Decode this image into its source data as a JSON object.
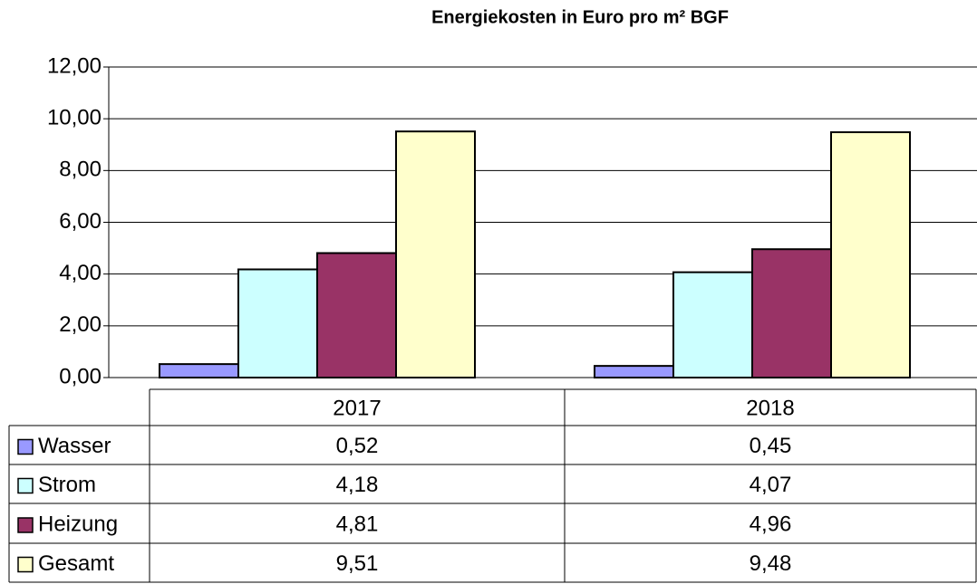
{
  "chart_data": {
    "type": "bar",
    "title": "Energiekosten in Euro pro m² BGF",
    "categories": [
      "2017",
      "2018"
    ],
    "series": [
      {
        "name": "Wasser",
        "color": "#9999ff",
        "values": [
          0.52,
          0.45
        ],
        "value_labels": [
          "0,52",
          "0,45"
        ]
      },
      {
        "name": "Strom",
        "color": "#ccffff",
        "values": [
          4.18,
          4.07
        ],
        "value_labels": [
          "4,18",
          "4,07"
        ]
      },
      {
        "name": "Heizung",
        "color": "#993366",
        "values": [
          4.81,
          4.96
        ],
        "value_labels": [
          "4,81",
          "4,96"
        ]
      },
      {
        "name": "Gesamt",
        "color": "#ffffcc",
        "values": [
          9.51,
          9.48
        ],
        "value_labels": [
          "9,51",
          "9,48"
        ]
      }
    ],
    "ylim": [
      0,
      12
    ],
    "yticks": [
      {
        "value": 0,
        "label": "0,00"
      },
      {
        "value": 2,
        "label": "2,00"
      },
      {
        "value": 4,
        "label": "4,00"
      },
      {
        "value": 6,
        "label": "6,00"
      },
      {
        "value": 8,
        "label": "8,00"
      },
      {
        "value": 10,
        "label": "10,00"
      },
      {
        "value": 12,
        "label": "12,00"
      }
    ],
    "grid": true
  }
}
